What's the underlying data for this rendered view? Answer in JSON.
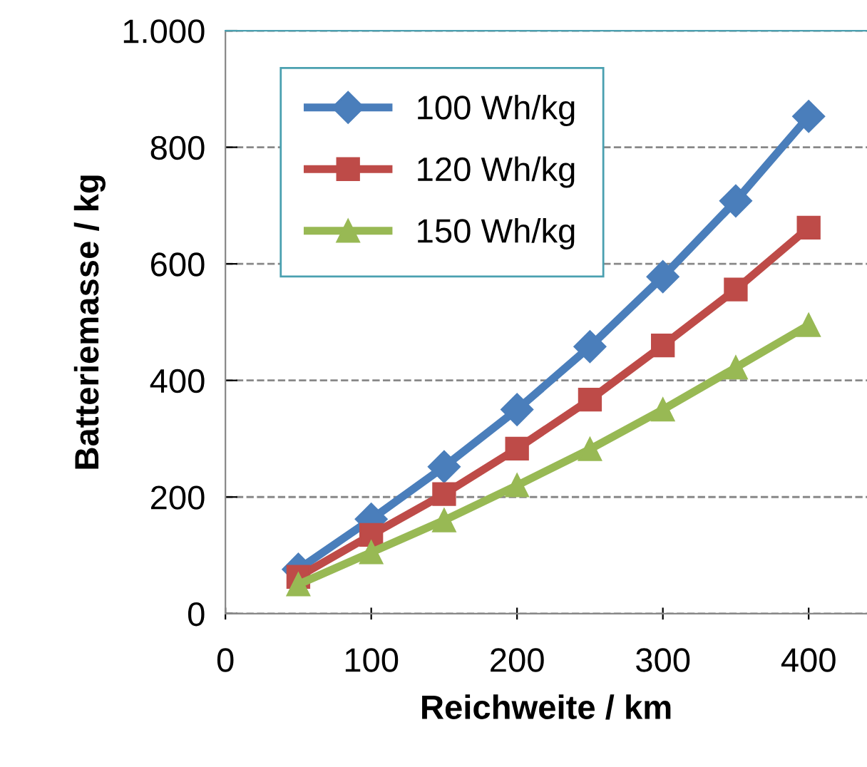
{
  "chart_data": {
    "type": "line",
    "xlabel": "Reichweite / km",
    "ylabel": "Batteriemasse / kg",
    "x": [
      50,
      100,
      150,
      200,
      250,
      300,
      350,
      400
    ],
    "series": [
      {
        "name": "100 Wh/kg",
        "color": "#4a7ebb",
        "marker": "diamond",
        "values": [
          76,
          162,
          252,
          350,
          458,
          578,
          708,
          853
        ]
      },
      {
        "name": "120 Wh/kg",
        "color": "#be4b48",
        "marker": "square",
        "values": [
          63,
          135,
          205,
          283,
          367,
          460,
          556,
          662
        ]
      },
      {
        "name": "150 Wh/kg",
        "color": "#98b954",
        "marker": "triangle",
        "values": [
          50,
          105,
          160,
          220,
          282,
          350,
          422,
          495
        ]
      }
    ],
    "xlim": [
      0,
      440
    ],
    "xticks": [
      0,
      100,
      200,
      300,
      400
    ],
    "ylim": [
      0,
      1000
    ],
    "yticks": [
      0,
      200,
      400,
      600,
      800,
      {
        "value": 1000,
        "label": "1.000"
      }
    ],
    "grid": "y",
    "line_style": "solid",
    "legend": "top left"
  }
}
